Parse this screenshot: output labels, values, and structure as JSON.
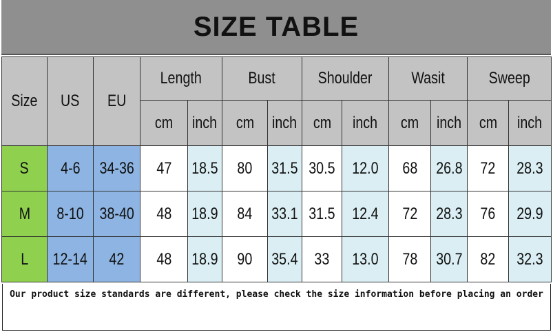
{
  "title": "SIZE TABLE",
  "headers": {
    "size": "Size",
    "us": "US",
    "eu": "EU",
    "groups": [
      "Length",
      "Bust",
      "Shoulder",
      "Wasit",
      "Sweep"
    ],
    "units": [
      "cm",
      "inch",
      "cm",
      "inch",
      "cm",
      "inch",
      "cm",
      "inch",
      "cm",
      "inch"
    ]
  },
  "rows": [
    {
      "size": "S",
      "us": "4-6",
      "eu": "34-36",
      "values": [
        "47",
        "18.5",
        "80",
        "31.5",
        "30.5",
        "12.0",
        "68",
        "26.8",
        "72",
        "28.3"
      ]
    },
    {
      "size": "M",
      "us": "8-10",
      "eu": "38-40",
      "values": [
        "48",
        "18.9",
        "84",
        "33.1",
        "31.5",
        "12.4",
        "72",
        "28.3",
        "76",
        "29.9"
      ]
    },
    {
      "size": "L",
      "us": "12-14",
      "eu": "42",
      "values": [
        "48",
        "18.9",
        "90",
        "35.4",
        "33",
        "13.0",
        "78",
        "30.7",
        "82",
        "32.3"
      ]
    }
  ],
  "note": "Our product size standards are different, please check the size information before placing an order",
  "colors": {
    "header": "#c3c3c3",
    "size_cell": "#8fd14f",
    "region_cell": "#8db4e2",
    "inch_cell": "#daeef3",
    "title_bar": "#8f8f8f"
  }
}
